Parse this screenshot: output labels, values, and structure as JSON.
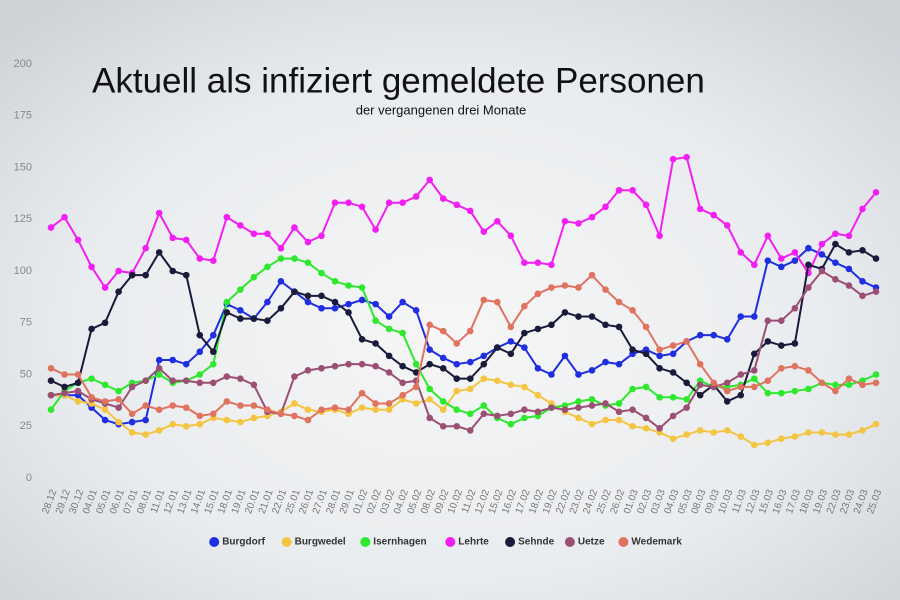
{
  "chart_data": {
    "type": "line",
    "title": "Aktuell als infiziert gemeldete Personen",
    "subtitle": "der vergangenen drei Monate",
    "categories": [
      "28.12",
      "29.12",
      "30.12",
      "04.01",
      "05.01",
      "06.01",
      "07.01",
      "08.01",
      "11.01",
      "12.01",
      "13.01",
      "14.01",
      "15.01",
      "18.01",
      "19.01",
      "20.01",
      "21.01",
      "22.01",
      "25.01",
      "26.01",
      "27.01",
      "28.01",
      "29.01",
      "01.02",
      "02.02",
      "03.02",
      "04.02",
      "05.02",
      "08.02",
      "09.02",
      "10.02",
      "11.02",
      "12.02",
      "15.02",
      "16.02",
      "17.02",
      "18.02",
      "19.02",
      "22.02",
      "23.02",
      "24.02",
      "25.02",
      "26.02",
      "01.03",
      "02.03",
      "03.03",
      "04.03",
      "05.03",
      "08.03",
      "09.03",
      "10.03",
      "11.03",
      "12.03",
      "15.03",
      "16.03",
      "17.03",
      "18.03",
      "19.03",
      "22.03",
      "23.03",
      "24.03",
      "25.03"
    ],
    "ylim": [
      0,
      200
    ],
    "yticks": [
      0,
      25,
      50,
      75,
      100,
      125,
      150,
      175,
      200
    ],
    "grid": false,
    "series": [
      {
        "name": "Burgdorf",
        "color": "#1f2fe0",
        "values": [
          40,
          40,
          40,
          34,
          28,
          26,
          27,
          28,
          57,
          57,
          55,
          61,
          69,
          84,
          81,
          77,
          85,
          95,
          90,
          85,
          82,
          82,
          84,
          86,
          84,
          78,
          85,
          81,
          62,
          58,
          55,
          56,
          59,
          63,
          66,
          63,
          53,
          50,
          59,
          50,
          52,
          56,
          55,
          60,
          62,
          59,
          60,
          66,
          69,
          69,
          67,
          78,
          78,
          105,
          102,
          105,
          111,
          108,
          104,
          101,
          95,
          92
        ]
      },
      {
        "name": "Burgwedel",
        "color": "#f4c542",
        "values": [
          40,
          40,
          37,
          36,
          33,
          27,
          22,
          21,
          23,
          26,
          25,
          26,
          29,
          28,
          27,
          29,
          30,
          32,
          36,
          33,
          32,
          33,
          31,
          34,
          33,
          33,
          38,
          36,
          38,
          33,
          42,
          43,
          48,
          47,
          45,
          44,
          40,
          36,
          32,
          29,
          26,
          28,
          28,
          25,
          24,
          22,
          19,
          21,
          23,
          22,
          23,
          20,
          16,
          17,
          19,
          20,
          22,
          22,
          21,
          21,
          23,
          26
        ]
      },
      {
        "name": "Isernhagen",
        "color": "#2ee82e",
        "values": [
          33,
          42,
          46,
          48,
          45,
          42,
          46,
          47,
          50,
          46,
          47,
          50,
          55,
          85,
          91,
          97,
          102,
          106,
          106,
          104,
          99,
          95,
          93,
          92,
          76,
          72,
          70,
          55,
          43,
          37,
          33,
          31,
          35,
          29,
          26,
          29,
          30,
          34,
          35,
          37,
          38,
          35,
          36,
          43,
          44,
          39,
          39,
          38,
          47,
          44,
          44,
          45,
          48,
          41,
          41,
          42,
          43,
          46,
          45,
          45,
          47,
          50
        ]
      },
      {
        "name": "Lehrte",
        "color": "#f21ff2",
        "values": [
          121,
          126,
          115,
          102,
          92,
          100,
          99,
          111,
          128,
          116,
          115,
          106,
          105,
          126,
          122,
          118,
          118,
          111,
          121,
          114,
          117,
          133,
          133,
          131,
          120,
          133,
          133,
          136,
          144,
          135,
          132,
          129,
          119,
          124,
          117,
          104,
          104,
          103,
          124,
          123,
          126,
          131,
          139,
          139,
          132,
          117,
          154,
          155,
          130,
          127,
          122,
          109,
          103,
          117,
          106,
          109,
          99,
          113,
          118,
          117,
          130,
          138
        ]
      },
      {
        "name": "Sehnde",
        "color": "#1a1a3a",
        "values": [
          47,
          44,
          46,
          72,
          75,
          90,
          98,
          98,
          109,
          100,
          98,
          69,
          61,
          80,
          77,
          77,
          76,
          82,
          90,
          88,
          88,
          85,
          80,
          67,
          65,
          59,
          54,
          51,
          55,
          53,
          48,
          48,
          55,
          63,
          60,
          70,
          72,
          74,
          80,
          78,
          78,
          74,
          73,
          62,
          60,
          53,
          51,
          46,
          40,
          45,
          37,
          40,
          60,
          66,
          64,
          65,
          103,
          101,
          113,
          109,
          110,
          106
        ]
      },
      {
        "name": "Uetze",
        "color": "#9b4f74",
        "values": [
          40,
          41,
          42,
          38,
          36,
          34,
          44,
          47,
          53,
          47,
          47,
          46,
          46,
          49,
          48,
          45,
          32,
          31,
          49,
          52,
          53,
          54,
          55,
          55,
          54,
          51,
          46,
          47,
          29,
          25,
          25,
          23,
          31,
          30,
          31,
          33,
          32,
          34,
          33,
          34,
          35,
          36,
          32,
          33,
          29,
          24,
          30,
          34,
          45,
          44,
          46,
          50,
          52,
          76,
          76,
          82,
          92,
          100,
          96,
          93,
          88,
          90
        ]
      },
      {
        "name": "Wedemark",
        "color": "#e0735f",
        "values": [
          53,
          50,
          50,
          39,
          37,
          38,
          31,
          35,
          33,
          35,
          34,
          30,
          31,
          37,
          35,
          35,
          33,
          31,
          30,
          28,
          33,
          34,
          33,
          41,
          36,
          36,
          40,
          44,
          74,
          71,
          65,
          71,
          86,
          85,
          73,
          83,
          89,
          92,
          93,
          92,
          98,
          91,
          85,
          81,
          73,
          62,
          64,
          66,
          55,
          46,
          42,
          44,
          44,
          47,
          53,
          54,
          52,
          46,
          42,
          48,
          45,
          46
        ]
      }
    ]
  }
}
